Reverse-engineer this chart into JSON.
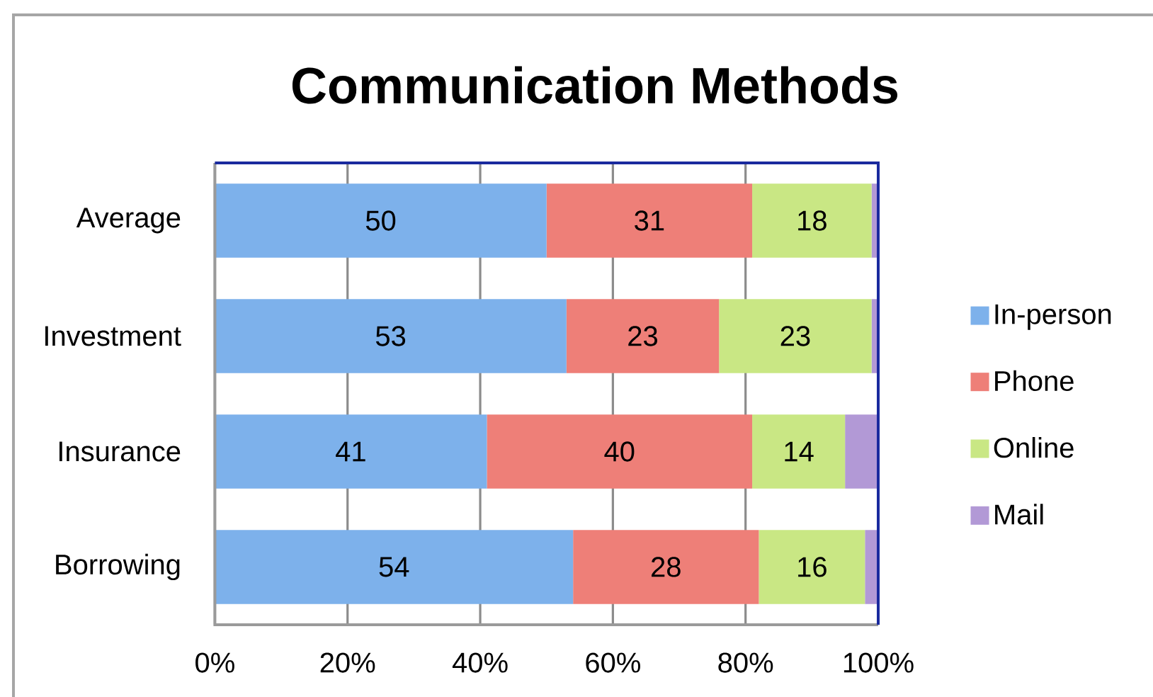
{
  "chart_data": {
    "type": "bar",
    "orientation": "horizontal",
    "stacked": true,
    "title": "Communication Methods",
    "categories": [
      "Average",
      "Investment",
      "Insurance",
      "Borrowing"
    ],
    "series": [
      {
        "name": "In-person",
        "color": "#7db1eb",
        "values": [
          50,
          53,
          41,
          54
        ],
        "value_labels": [
          "50",
          "53",
          "41",
          "54"
        ]
      },
      {
        "name": "Phone",
        "color": "#ee7f78",
        "values": [
          31,
          23,
          40,
          28
        ],
        "value_labels": [
          "31",
          "23",
          "40",
          "28"
        ]
      },
      {
        "name": "Online",
        "color": "#c9e784",
        "values": [
          18,
          23,
          14,
          16
        ],
        "value_labels": [
          "18",
          "23",
          "14",
          "16"
        ]
      },
      {
        "name": "Mail",
        "color": "#b299d6",
        "values": [
          1,
          1,
          5,
          2
        ]
      }
    ],
    "xlim": [
      0,
      100
    ],
    "xticks": [
      {
        "value": 0,
        "label": "0%"
      },
      {
        "value": 20,
        "label": "20%"
      },
      {
        "value": 40,
        "label": "40%"
      },
      {
        "value": 60,
        "label": "60%"
      },
      {
        "value": 80,
        "label": "80%"
      },
      {
        "value": 100,
        "label": "100%"
      }
    ],
    "grid": "x",
    "legend": "right"
  }
}
